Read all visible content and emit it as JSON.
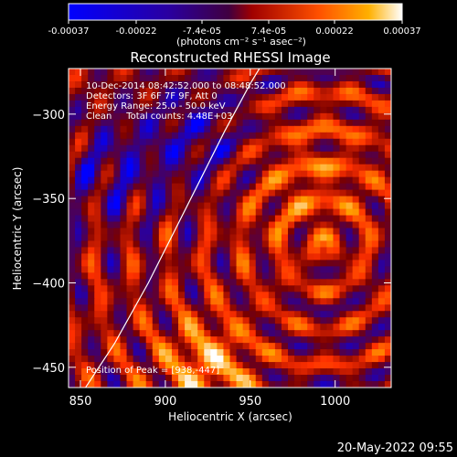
{
  "colorbar": {
    "ticks": [
      "-0.00037",
      "-0.00022",
      "-7.4e-05",
      "7.4e-05",
      "0.00022",
      "0.00037"
    ],
    "tick_values": [
      -0.00037,
      -0.00022,
      -7.4e-05,
      7.4e-05,
      0.00022,
      0.00037
    ],
    "unit_label": "(photons cm⁻² s⁻¹ asec⁻²)",
    "range": [
      -0.00037,
      0.00037
    ],
    "colormap": [
      "#0000ff",
      "#3a007a",
      "#7a0000",
      "#ff3000",
      "#ffa000",
      "#ffffff"
    ]
  },
  "chart_data": {
    "type": "heatmap",
    "title": "Reconstructed RHESSI Image",
    "xlabel": "Heliocentric X (arcsec)",
    "ylabel": "Heliocentric Y (arcsec)",
    "xlim": [
      843,
      1033
    ],
    "ylim": [
      -462,
      -273
    ],
    "x_ticks": [
      850,
      900,
      950,
      1000
    ],
    "y_ticks": [
      -300,
      -350,
      -400,
      -450
    ],
    "x_tick_labels": [
      "850",
      "900",
      "950",
      "1000"
    ],
    "y_tick_labels": [
      "−300",
      "−350",
      "−400",
      "−450"
    ],
    "limb_curve": {
      "x": [
        853,
        870,
        890,
        905,
        920,
        935,
        950,
        962
      ],
      "y": [
        -462,
        -436,
        -400,
        -370,
        -340,
        -310,
        -282,
        -262
      ]
    },
    "annotations": [
      "10-Dec-2014 08:42:52.000 to 08:48:52.000",
      "Detectors: 3F 6F 7F 9F, Att 0",
      "Energy Range: 25.0 - 50.0 keV",
      "Clean     Total counts: 4.48E+03"
    ],
    "peak_label": "Position of Peak = [938,-447]"
  },
  "footer": {
    "timestamp": "20-May-2022 09:55"
  }
}
